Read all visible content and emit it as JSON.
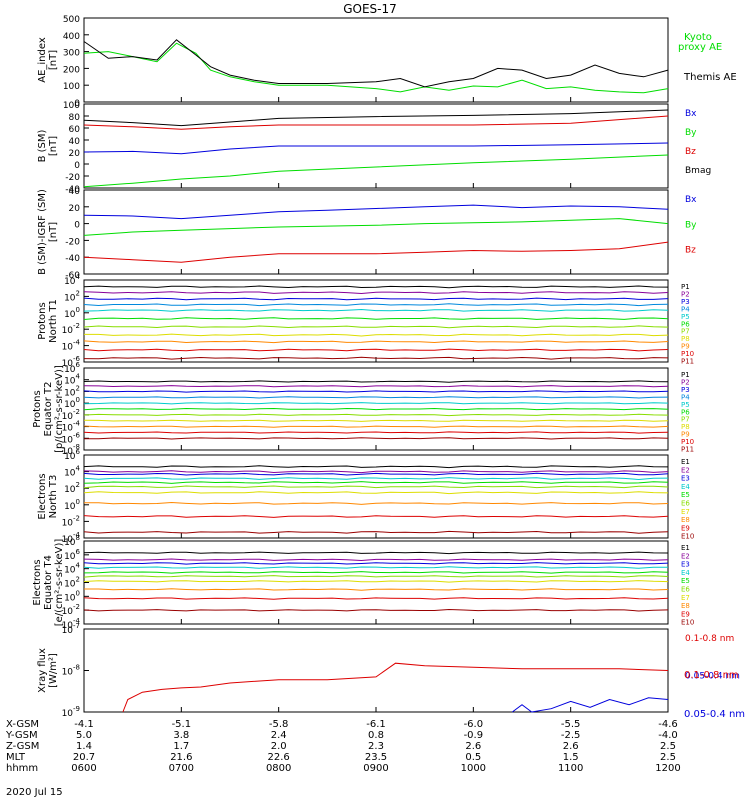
{
  "title": "GOES-17",
  "date_label": "2020 Jul 15",
  "axis_labels": {
    "p0": [
      "AE_index",
      "[nT]"
    ],
    "p1": [
      "B (SM)",
      "[nT]"
    ],
    "p2": [
      "B (SM)-IGRF (SM)",
      "[nT]"
    ],
    "p3": [
      "Protons",
      "North T1"
    ],
    "p4": [
      "Protons",
      "Equator T2",
      "[p/(cm²-s-sr-keV)]"
    ],
    "p5": [
      "Electrons",
      "North T3"
    ],
    "p6": [
      "Electrons",
      "Equator T4",
      "[e/(cm²-s-sr-keV)]"
    ],
    "p7": [
      "Xray flux",
      "[W/m²]"
    ]
  },
  "ephemeris": {
    "rows": [
      {
        "label": "X-GSM",
        "values": [
          "-4.1",
          "-5.1",
          "-5.8",
          "-6.1",
          "-6.0",
          "-5.5",
          "-4.6"
        ]
      },
      {
        "label": "Y-GSM",
        "values": [
          "5.0",
          "3.8",
          "2.4",
          "0.8",
          "-0.9",
          "-2.5",
          "-4.0"
        ]
      },
      {
        "label": "Z-GSM",
        "values": [
          "1.4",
          "1.7",
          "2.0",
          "2.3",
          "2.6",
          "2.6",
          "2.5"
        ]
      },
      {
        "label": "MLT",
        "values": [
          "20.7",
          "21.6",
          "22.6",
          "23.5",
          "0.5",
          "1.5",
          "2.5"
        ]
      },
      {
        "label": "hhmm",
        "values": [
          "0600",
          "0700",
          "0800",
          "0900",
          "1000",
          "1100",
          "1200"
        ]
      }
    ]
  },
  "colors": {
    "black": "#000000",
    "green": "#00dd00",
    "blue": "#0000dd",
    "red": "#dd0000",
    "purple": "#880099",
    "yellow": "#dddd00",
    "orange": "#ff8800",
    "cyan": "#00cccc",
    "lime": "#88dd00"
  },
  "chart_data": [
    {
      "type": "line",
      "ylabel": "AE_index [nT]",
      "ylim": [
        0,
        500
      ],
      "yticks": [
        0,
        100,
        200,
        300,
        400,
        500
      ],
      "yscale": "linear",
      "xlim": [
        6,
        12
      ],
      "series": [
        {
          "name": "Kyoto proxy AE",
          "color": "#00dd00",
          "x": [
            6.0,
            6.25,
            6.5,
            6.75,
            6.95,
            7.15,
            7.3,
            7.5,
            7.75,
            8.0,
            8.5,
            9.0,
            9.25,
            9.5,
            9.75,
            10.0,
            10.25,
            10.5,
            10.75,
            11.0,
            11.25,
            11.5,
            11.75,
            12.0
          ],
          "y": [
            290,
            300,
            270,
            240,
            350,
            290,
            190,
            150,
            120,
            100,
            100,
            80,
            60,
            90,
            70,
            95,
            90,
            130,
            80,
            90,
            70,
            60,
            55,
            80
          ]
        },
        {
          "name": "Themis AE",
          "color": "#000000",
          "x": [
            6.0,
            6.25,
            6.5,
            6.75,
            6.95,
            7.15,
            7.3,
            7.5,
            7.75,
            8.0,
            8.5,
            9.0,
            9.25,
            9.5,
            9.75,
            10.0,
            10.25,
            10.5,
            10.75,
            11.0,
            11.25,
            11.5,
            11.75,
            12.0
          ],
          "y": [
            360,
            260,
            270,
            250,
            370,
            280,
            210,
            160,
            130,
            110,
            110,
            120,
            140,
            90,
            120,
            140,
            200,
            190,
            140,
            160,
            220,
            170,
            150,
            190
          ]
        }
      ],
      "legend_labels": [
        "Kyoto",
        "proxy AE",
        "Themis AE"
      ]
    },
    {
      "type": "line",
      "ylabel": "B (SM) [nT]",
      "ylim": [
        -40,
        100
      ],
      "yticks": [
        -40,
        -20,
        0,
        20,
        40,
        60,
        80,
        100
      ],
      "yscale": "linear",
      "xlim": [
        6,
        12
      ],
      "series": [
        {
          "name": "Bx",
          "color": "#0000dd",
          "x": [
            6,
            6.5,
            7,
            7.5,
            8,
            9,
            10,
            11,
            12
          ],
          "y": [
            20,
            21,
            17,
            25,
            30,
            30,
            30,
            32,
            35
          ]
        },
        {
          "name": "By",
          "color": "#00dd00",
          "x": [
            6,
            6.5,
            7,
            7.5,
            8,
            9,
            10,
            11,
            12
          ],
          "y": [
            -38,
            -32,
            -25,
            -20,
            -12,
            -5,
            2,
            8,
            15
          ]
        },
        {
          "name": "Bz",
          "color": "#dd0000",
          "x": [
            6,
            6.5,
            7,
            7.5,
            8,
            9,
            10,
            11,
            12
          ],
          "y": [
            65,
            62,
            58,
            62,
            65,
            65,
            65,
            68,
            80
          ]
        },
        {
          "name": "Bmag",
          "color": "#000000",
          "x": [
            6,
            6.5,
            7,
            7.5,
            8,
            9,
            10,
            11,
            12
          ],
          "y": [
            73,
            69,
            64,
            70,
            76,
            79,
            81,
            84,
            90
          ]
        }
      ]
    },
    {
      "type": "line",
      "ylabel": "B (SM)-IGRF (SM) [nT]",
      "ylim": [
        -60,
        40
      ],
      "yticks": [
        -60,
        -40,
        -20,
        0,
        20,
        40
      ],
      "yscale": "linear",
      "xlim": [
        6,
        12
      ],
      "series": [
        {
          "name": "Bx",
          "color": "#0000dd",
          "x": [
            6,
            6.5,
            7,
            7.5,
            8,
            8.5,
            9,
            9.5,
            10,
            10.5,
            11,
            11.5,
            12
          ],
          "y": [
            10,
            9,
            6,
            10,
            14,
            16,
            18,
            20,
            22,
            19,
            21,
            20,
            17
          ]
        },
        {
          "name": "By",
          "color": "#00dd00",
          "x": [
            6,
            6.5,
            7,
            7.5,
            8,
            8.5,
            9,
            9.5,
            10,
            10.5,
            11,
            11.5,
            12
          ],
          "y": [
            -14,
            -10,
            -8,
            -6,
            -4,
            -3,
            -2,
            0,
            1,
            2,
            4,
            6,
            0
          ]
        },
        {
          "name": "Bz",
          "color": "#dd0000",
          "x": [
            6,
            6.5,
            7,
            7.5,
            8,
            8.5,
            9,
            9.5,
            10,
            10.5,
            11,
            11.5,
            12
          ],
          "y": [
            -40,
            -43,
            -46,
            -40,
            -36,
            -36,
            -36,
            -34,
            -32,
            -33,
            -32,
            -30,
            -22
          ]
        }
      ]
    },
    {
      "type": "line",
      "ylabel": "Protons North T1",
      "yscale": "log",
      "ylim": [
        1e-06,
        10000.0
      ],
      "yticks_exp": [
        -6,
        -4,
        -2,
        0,
        2,
        4
      ],
      "xlim": [
        6,
        12
      ],
      "series": [
        {
          "name": "P1",
          "color": "#000000",
          "level": 1500
        },
        {
          "name": "P2",
          "color": "#880099",
          "level": 300
        },
        {
          "name": "P3",
          "color": "#0000dd",
          "level": 50
        },
        {
          "name": "P4",
          "color": "#0088dd",
          "level": 10
        },
        {
          "name": "P5",
          "color": "#00cccc",
          "level": 2
        },
        {
          "name": "P6",
          "color": "#00dd00",
          "level": 0.2
        },
        {
          "name": "P7",
          "color": "#88dd00",
          "level": 0.02
        },
        {
          "name": "P8",
          "color": "#dddd00",
          "level": 0.002
        },
        {
          "name": "P9",
          "color": "#ff8800",
          "level": 0.0003
        },
        {
          "name": "P10",
          "color": "#dd0000",
          "level": 3e-05
        },
        {
          "name": "P11",
          "color": "#990000",
          "level": 3e-06
        }
      ]
    },
    {
      "type": "line",
      "ylabel": "Protons Equator T2 [p/(cm²-s-sr-keV)]",
      "yscale": "log",
      "ylim": [
        1e-08,
        1000000.0
      ],
      "yticks_exp": [
        -8,
        -6,
        -4,
        -2,
        0,
        2,
        4,
        6
      ],
      "xlim": [
        6,
        12
      ],
      "series": [
        {
          "name": "P1",
          "color": "#000000",
          "level": 5000
        },
        {
          "name": "P2",
          "color": "#880099",
          "level": 800
        },
        {
          "name": "P3",
          "color": "#0000dd",
          "level": 100
        },
        {
          "name": "P4",
          "color": "#0088dd",
          "level": 10
        },
        {
          "name": "P5",
          "color": "#00cccc",
          "level": 1
        },
        {
          "name": "P6",
          "color": "#00dd00",
          "level": 0.1
        },
        {
          "name": "P7",
          "color": "#88dd00",
          "level": 0.01
        },
        {
          "name": "P8",
          "color": "#dddd00",
          "level": 0.001
        },
        {
          "name": "P9",
          "color": "#ff8800",
          "level": 0.0001
        },
        {
          "name": "P10",
          "color": "#dd0000",
          "level": 1e-05
        },
        {
          "name": "P11",
          "color": "#990000",
          "level": 1e-06
        }
      ]
    },
    {
      "type": "line",
      "ylabel": "Electrons North T3",
      "yscale": "log",
      "ylim": [
        0.0001,
        1000000.0
      ],
      "yticks_exp": [
        -4,
        -2,
        0,
        2,
        4,
        6
      ],
      "xlim": [
        6,
        12
      ],
      "series": [
        {
          "name": "E1",
          "color": "#000000",
          "level": 40000
        },
        {
          "name": "E2",
          "color": "#880099",
          "level": 10000
        },
        {
          "name": "E3",
          "color": "#0000dd",
          "level": 5000
        },
        {
          "name": "E4",
          "color": "#00cccc",
          "level": 1500
        },
        {
          "name": "E5",
          "color": "#00dd00",
          "level": 500
        },
        {
          "name": "E6",
          "color": "#88dd00",
          "level": 150
        },
        {
          "name": "E7",
          "color": "#dddd00",
          "level": 30
        },
        {
          "name": "E8",
          "color": "#ff8800",
          "level": 1.5
        },
        {
          "name": "E9",
          "color": "#dd0000",
          "level": 0.04
        },
        {
          "name": "E10",
          "color": "#990000",
          "level": 0.0005
        }
      ]
    },
    {
      "type": "line",
      "ylabel": "Electrons Equator T4 [e/(cm²-s-sr-keV)]",
      "yscale": "log",
      "ylim": [
        0.0001,
        100000000.0
      ],
      "yticks_exp": [
        -4,
        -2,
        0,
        2,
        4,
        6,
        8
      ],
      "xlim": [
        6,
        12
      ],
      "series": [
        {
          "name": "E1",
          "color": "#000000",
          "level": 2000000
        },
        {
          "name": "E2",
          "color": "#880099",
          "level": 200000
        },
        {
          "name": "E3",
          "color": "#0000dd",
          "level": 60000
        },
        {
          "name": "E4",
          "color": "#00cccc",
          "level": 15000
        },
        {
          "name": "E5",
          "color": "#00dd00",
          "level": 3000
        },
        {
          "name": "E6",
          "color": "#88dd00",
          "level": 800
        },
        {
          "name": "E7",
          "color": "#dddd00",
          "level": 150
        },
        {
          "name": "E8",
          "color": "#ff8800",
          "level": 10
        },
        {
          "name": "E9",
          "color": "#dd0000",
          "level": 0.5
        },
        {
          "name": "E10",
          "color": "#990000",
          "level": 0.01
        }
      ]
    },
    {
      "type": "line",
      "ylabel": "Xray flux [W/m²]",
      "yscale": "log",
      "ylim": [
        1e-09,
        1e-07
      ],
      "yticks_exp": [
        -9,
        -8,
        -7
      ],
      "xlim": [
        6,
        12
      ],
      "series": [
        {
          "name": "0.1-0.8 nm",
          "color": "#dd0000",
          "x": [
            6.4,
            6.45,
            6.6,
            6.8,
            7.0,
            7.2,
            7.5,
            8.0,
            8.5,
            9.0,
            9.2,
            9.5,
            10.0,
            10.5,
            11.0,
            11.5,
            12.0
          ],
          "y": [
            1e-09,
            2e-09,
            3e-09,
            3.5e-09,
            3.8e-09,
            4e-09,
            5e-09,
            6e-09,
            6e-09,
            7e-09,
            1.5e-08,
            1.3e-08,
            1.2e-08,
            1.1e-08,
            1.1e-08,
            1.1e-08,
            1e-08
          ]
        },
        {
          "name": "0.05-0.4 nm",
          "color": "#0000dd",
          "x": [
            10.4,
            10.5,
            10.6,
            10.8,
            11.0,
            11.2,
            11.4,
            11.6,
            11.8,
            12.0
          ],
          "y": [
            1e-09,
            1.5e-09,
            1e-09,
            1.2e-09,
            1.8e-09,
            1.3e-09,
            2e-09,
            1.5e-09,
            2.2e-09,
            2e-09
          ]
        }
      ]
    }
  ]
}
